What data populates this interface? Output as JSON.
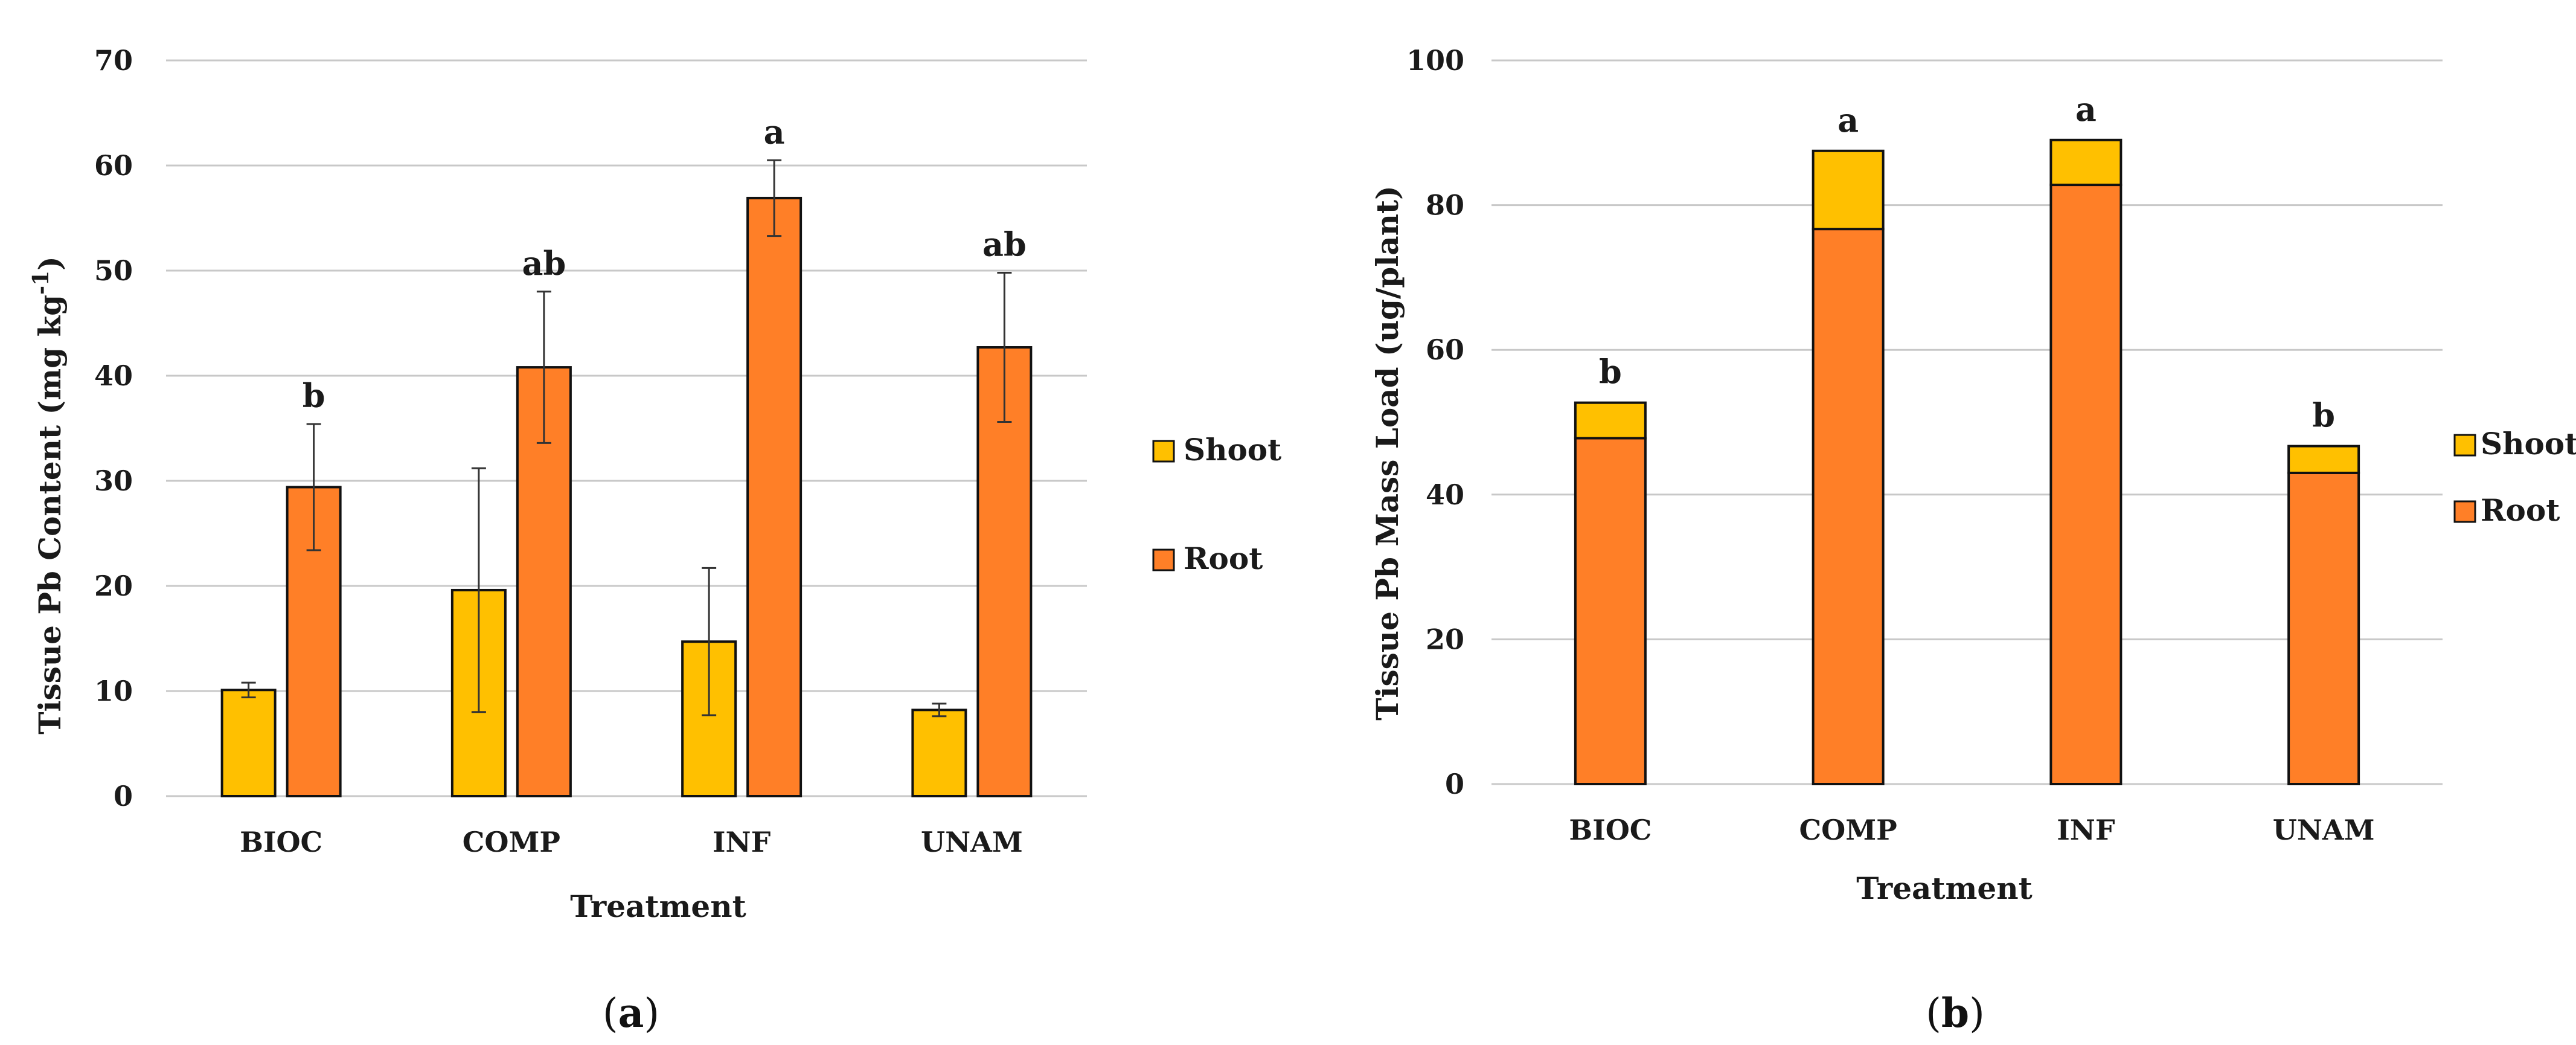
{
  "chart_data": [
    {
      "type": "bar",
      "panel_label": "a",
      "title": "",
      "xlabel": "Treatment",
      "ylabel_main": "Tissue Pb Content  (mg kg",
      "ylabel_sup": "-1",
      "ylabel_end": ")",
      "ylim": [
        0,
        70
      ],
      "yticks": [
        0,
        10,
        20,
        30,
        40,
        50,
        60,
        70
      ],
      "grid": true,
      "legend_position": "right",
      "categories": [
        "BIOC",
        "COMP",
        "INF",
        "UNAM"
      ],
      "series": [
        {
          "name": "Shoot",
          "color": "#FFC000",
          "values": [
            10.1,
            19.6,
            14.7,
            8.2
          ],
          "errors": [
            0.7,
            11.6,
            7.0,
            0.6
          ]
        },
        {
          "name": "Root",
          "color": "#FF7F27",
          "values": [
            29.4,
            40.8,
            56.9,
            42.7
          ],
          "errors": [
            6.0,
            7.2,
            3.6,
            7.1
          ]
        }
      ],
      "significance": [
        "b",
        "ab",
        "a",
        "ab"
      ]
    },
    {
      "type": "stacked_bar",
      "panel_label": "b",
      "title": "",
      "xlabel": "Treatment",
      "ylabel": "Tissue Pb Mass Load (ug/plant)",
      "ylim": [
        0,
        100
      ],
      "yticks": [
        0,
        20,
        40,
        60,
        80,
        100
      ],
      "grid": true,
      "legend_position": "right",
      "categories": [
        "BIOC",
        "COMP",
        "INF",
        "UNAM"
      ],
      "series": [
        {
          "name": "Root",
          "color": "#FF7F27",
          "values": [
            47.8,
            76.7,
            82.8,
            43.0
          ]
        },
        {
          "name": "Shoot",
          "color": "#FFC000",
          "values": [
            4.9,
            10.8,
            6.2,
            3.7
          ]
        }
      ],
      "legend_order": [
        "Shoot",
        "Root"
      ],
      "significance": [
        "b",
        "a",
        "a",
        "b"
      ]
    }
  ]
}
